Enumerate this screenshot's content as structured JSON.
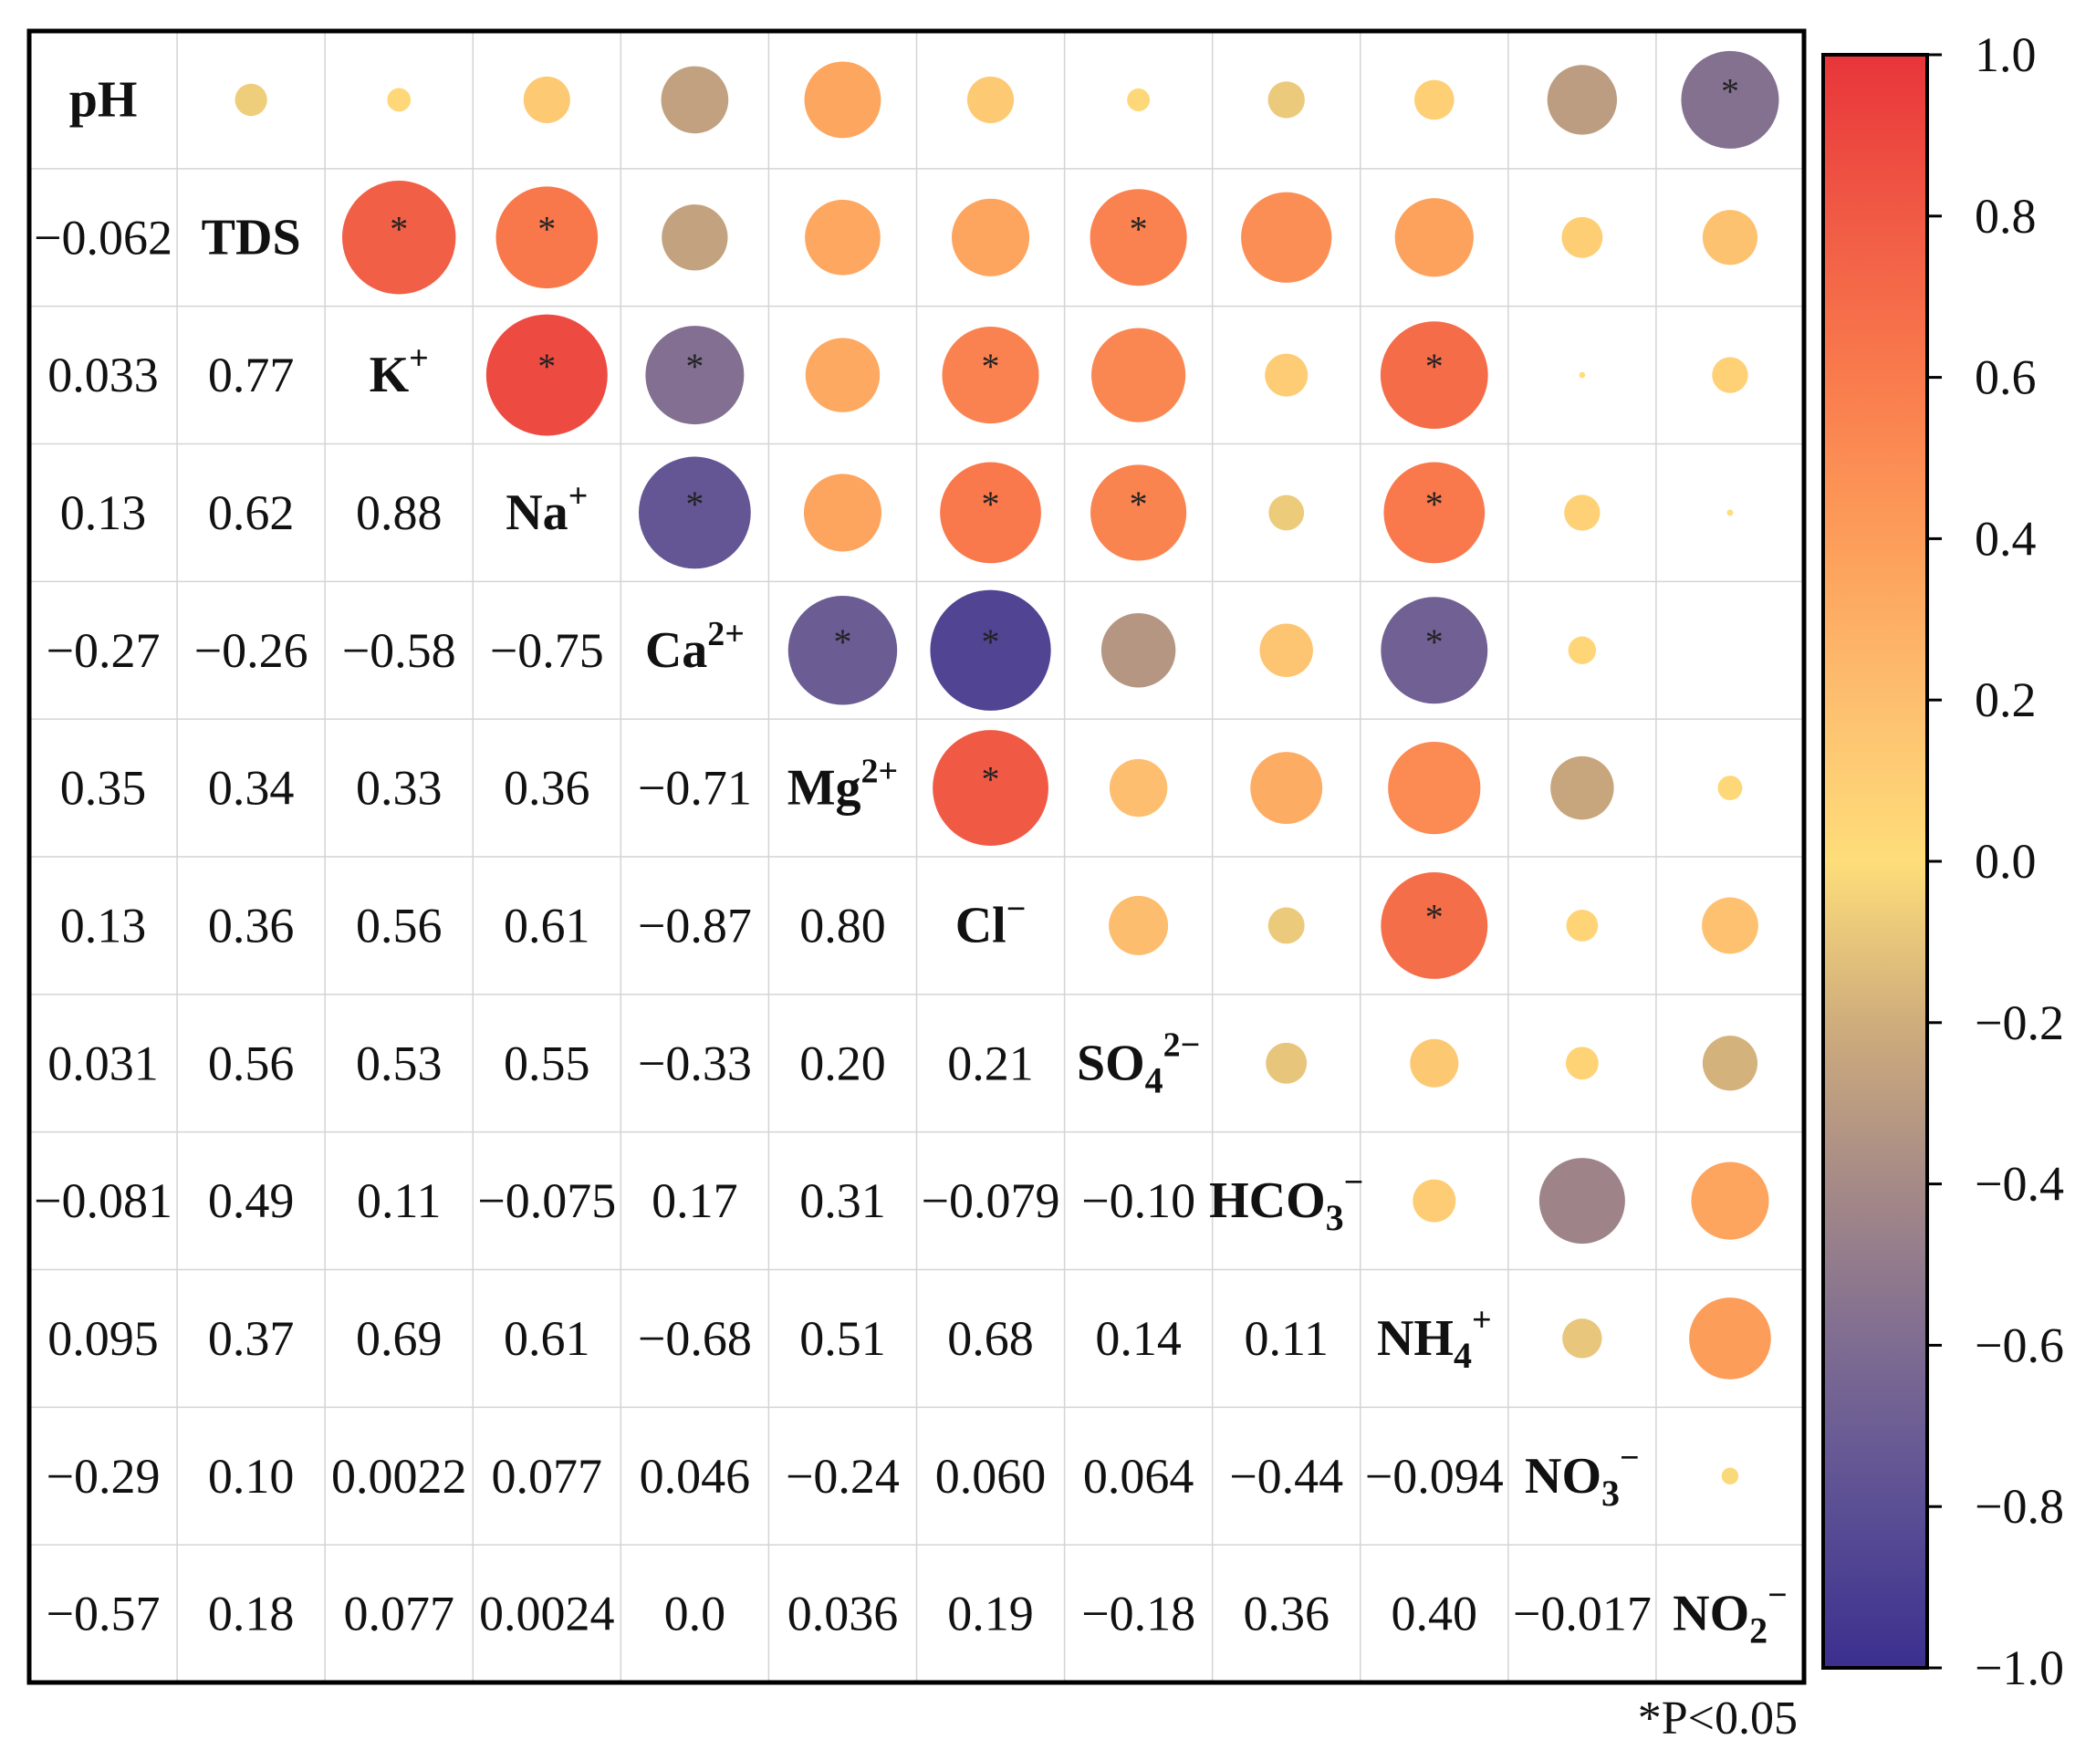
{
  "chart_data": {
    "type": "correlation-matrix",
    "variables": [
      {
        "base": "pH",
        "sup": "",
        "sub": ""
      },
      {
        "base": "TDS",
        "sup": "",
        "sub": ""
      },
      {
        "base": "K",
        "sup": "+",
        "sub": ""
      },
      {
        "base": "Na",
        "sup": "+",
        "sub": ""
      },
      {
        "base": "Ca",
        "sup": "2+",
        "sub": ""
      },
      {
        "base": "Mg",
        "sup": "2+",
        "sub": ""
      },
      {
        "base": "Cl",
        "sup": "−",
        "sub": ""
      },
      {
        "base": "SO",
        "sup": "2−",
        "sub": "4"
      },
      {
        "base": "HCO",
        "sup": "−",
        "sub": "3"
      },
      {
        "base": "NH",
        "sup": "+",
        "sub": "4"
      },
      {
        "base": "NO",
        "sup": "−",
        "sub": "3"
      },
      {
        "base": "NO",
        "sup": "−",
        "sub": "2"
      }
    ],
    "lower_labels": [
      [
        "−0.062"
      ],
      [
        "0.033",
        "0.77"
      ],
      [
        "0.13",
        "0.62",
        "0.88"
      ],
      [
        "−0.27",
        "−0.26",
        "−0.58",
        "−0.75"
      ],
      [
        "0.35",
        "0.34",
        "0.33",
        "0.36",
        "−0.71"
      ],
      [
        "0.13",
        "0.36",
        "0.56",
        "0.61",
        "−0.87",
        "0.80"
      ],
      [
        "0.031",
        "0.56",
        "0.53",
        "0.55",
        "−0.33",
        "0.20",
        "0.21"
      ],
      [
        "−0.081",
        "0.49",
        "0.11",
        "−0.075",
        "0.17",
        "0.31",
        "−0.079",
        "−0.10"
      ],
      [
        "0.095",
        "0.37",
        "0.69",
        "0.61",
        "−0.68",
        "0.51",
        "0.68",
        "0.14",
        "0.11"
      ],
      [
        "−0.29",
        "0.10",
        "0.0022",
        "0.077",
        "0.046",
        "−0.24",
        "0.060",
        "0.064",
        "−0.44",
        "−0.094"
      ],
      [
        "−0.57",
        "0.18",
        "0.077",
        "0.0024",
        "0.0",
        "0.036",
        "0.19",
        "−0.18",
        "0.36",
        "0.40",
        "−0.017"
      ]
    ],
    "significant_pairs": [
      [
        0,
        11
      ],
      [
        1,
        2
      ],
      [
        1,
        3
      ],
      [
        1,
        7
      ],
      [
        2,
        3
      ],
      [
        2,
        4
      ],
      [
        2,
        6
      ],
      [
        2,
        9
      ],
      [
        3,
        4
      ],
      [
        3,
        6
      ],
      [
        3,
        7
      ],
      [
        3,
        9
      ],
      [
        4,
        5
      ],
      [
        4,
        6
      ],
      [
        4,
        9
      ],
      [
        5,
        6
      ],
      [
        6,
        9
      ]
    ],
    "significance_marker": "*",
    "colorbar": {
      "range": [
        -1.0,
        1.0
      ],
      "ticks": [
        "1.0",
        "0.8",
        "0.6",
        "0.4",
        "0.2",
        "0.0",
        "−0.2",
        "−0.4",
        "−0.6",
        "−0.8",
        "−1.0"
      ],
      "colors": [
        "#3b2f8f",
        "#5b4f95",
        "#7e6c92",
        "#a68a87",
        "#cfad7c",
        "#fedd7a",
        "#fdbf6f",
        "#fd9d5a",
        "#f97b4d",
        "#f05a45",
        "#e8353a"
      ]
    },
    "note": "*P<0.05"
  }
}
